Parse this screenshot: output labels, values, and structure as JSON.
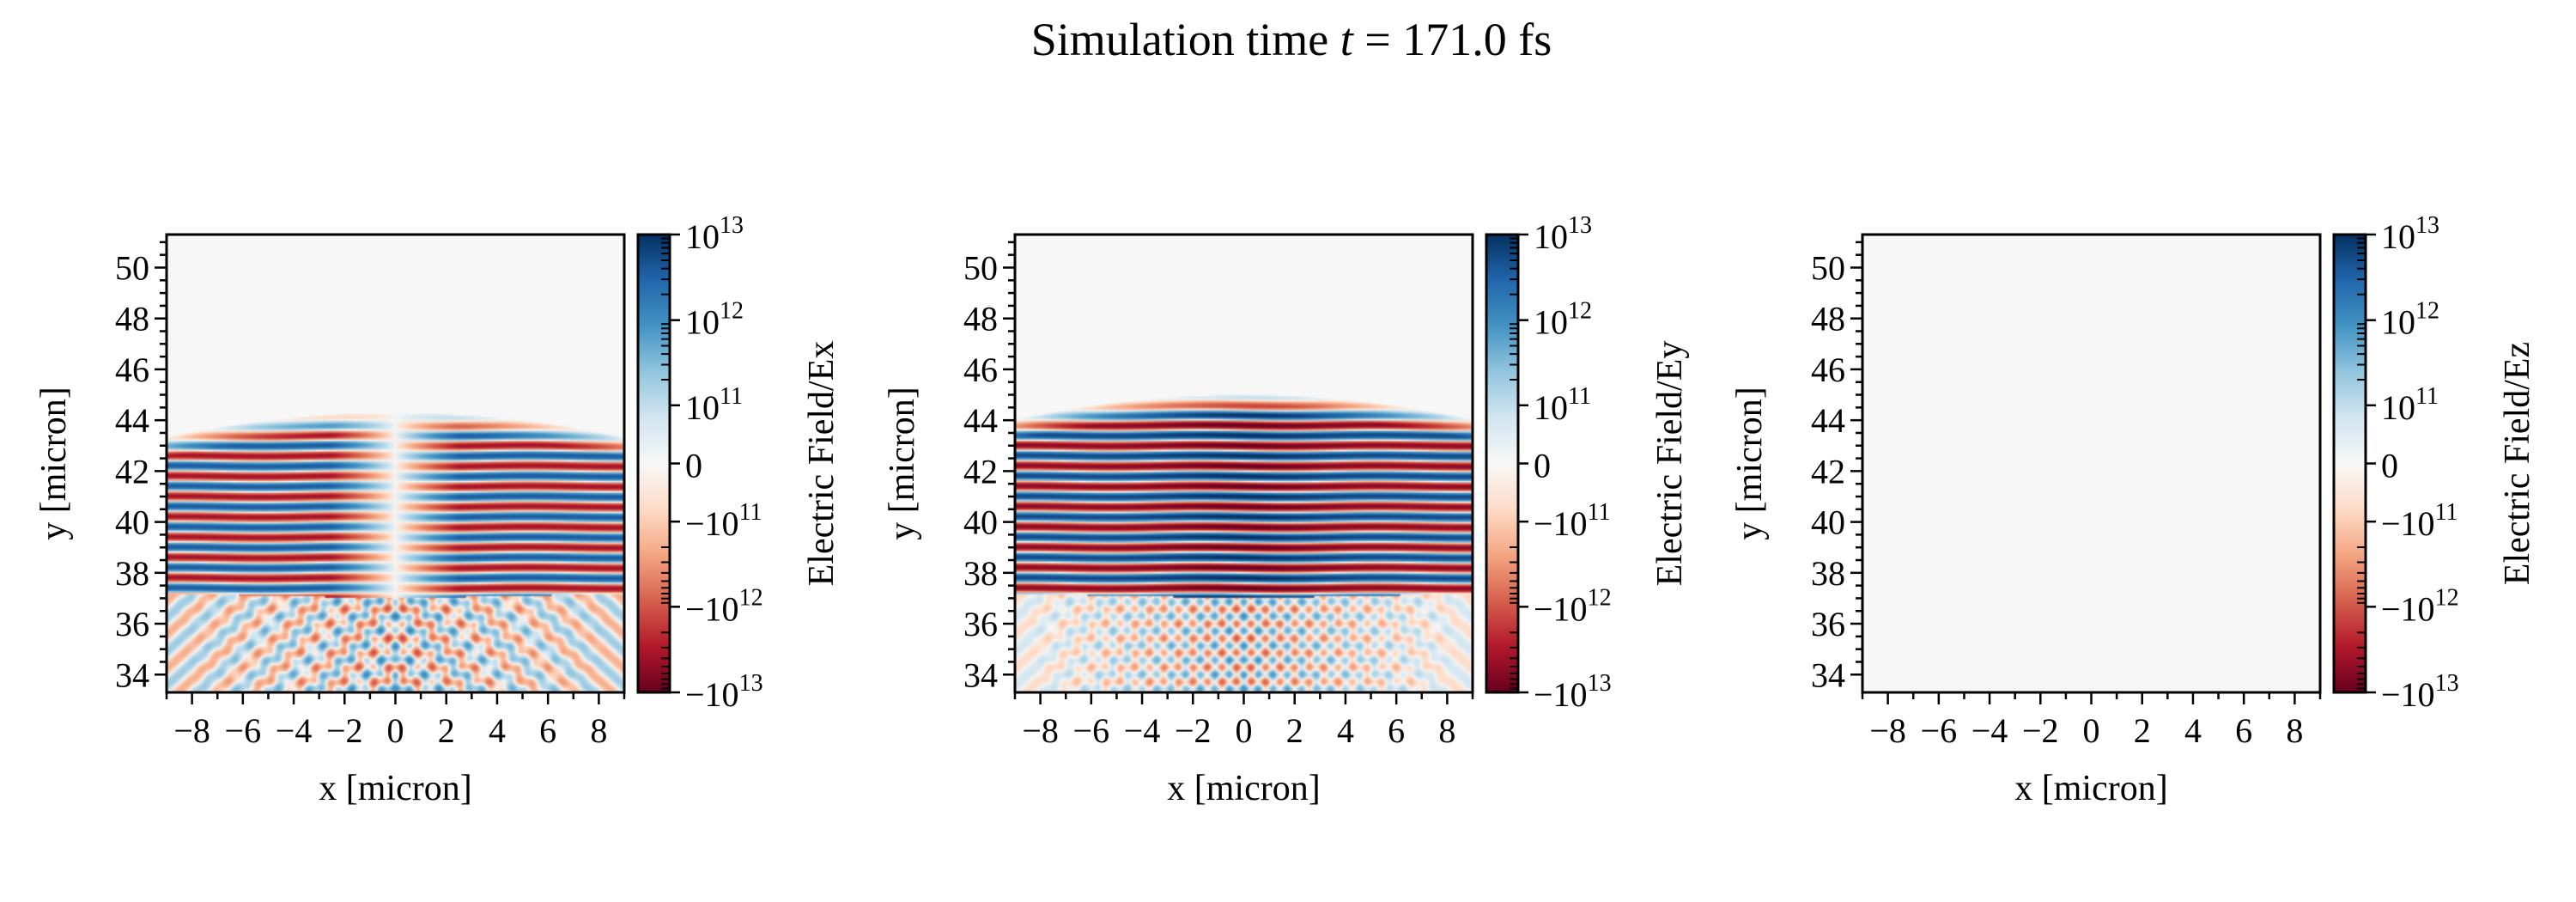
{
  "title": {
    "prefix": "Simulation time ",
    "variable": "t",
    "suffix": " = 171.0 fs"
  },
  "chart_data": [
    {
      "type": "heatmap",
      "xlabel": "x [micron]",
      "ylabel": "y [micron]",
      "xlim": [
        -9,
        9
      ],
      "ylim": [
        33.3,
        51.3
      ],
      "xticks": [
        -8,
        -6,
        -4,
        -2,
        0,
        2,
        4,
        6,
        8
      ],
      "yticks": [
        34,
        36,
        38,
        40,
        42,
        44,
        46,
        48,
        50
      ],
      "colorbar": {
        "label": "Electric Field/Ex",
        "scale": "symlog",
        "range": [
          -10000000000000.0,
          10000000000000.0
        ],
        "colormap": "RdBu",
        "ticks": [
          "10^13",
          "10^12",
          "10^11",
          "0",
          "-10^11",
          "-10^12",
          "-10^13"
        ]
      },
      "field": "Ex"
    },
    {
      "type": "heatmap",
      "xlabel": "x [micron]",
      "ylabel": "y [micron]",
      "xlim": [
        -9,
        9
      ],
      "ylim": [
        33.3,
        51.3
      ],
      "xticks": [
        -8,
        -6,
        -4,
        -2,
        0,
        2,
        4,
        6,
        8
      ],
      "yticks": [
        34,
        36,
        38,
        40,
        42,
        44,
        46,
        48,
        50
      ],
      "colorbar": {
        "label": "Electric Field/Ey",
        "scale": "symlog",
        "range": [
          -10000000000000.0,
          10000000000000.0
        ],
        "colormap": "RdBu",
        "ticks": [
          "10^13",
          "10^12",
          "10^11",
          "0",
          "-10^11",
          "-10^12",
          "-10^13"
        ]
      },
      "field": "Ey"
    },
    {
      "type": "heatmap",
      "xlabel": "x [micron]",
      "ylabel": "y [micron]",
      "xlim": [
        -9,
        9
      ],
      "ylim": [
        33.3,
        51.3
      ],
      "xticks": [
        -8,
        -6,
        -4,
        -2,
        0,
        2,
        4,
        6,
        8
      ],
      "yticks": [
        34,
        36,
        38,
        40,
        42,
        44,
        46,
        48,
        50
      ],
      "colorbar": {
        "label": "Electric Field/Ez",
        "scale": "symlog",
        "range": [
          -10000000000000.0,
          10000000000000.0
        ],
        "colormap": "RdBu",
        "ticks": [
          "10^13",
          "10^12",
          "10^11",
          "0",
          "-10^11",
          "-10^12",
          "-10^13"
        ]
      },
      "field": "Ez"
    }
  ],
  "colors": {
    "colormap_stops": [
      "#67001f",
      "#b2182b",
      "#d6604d",
      "#f4a582",
      "#fddbc7",
      "#f7f7f7",
      "#d1e5f0",
      "#92c5de",
      "#4393c3",
      "#2166ac",
      "#053061"
    ],
    "background": "#f7f7f7"
  }
}
